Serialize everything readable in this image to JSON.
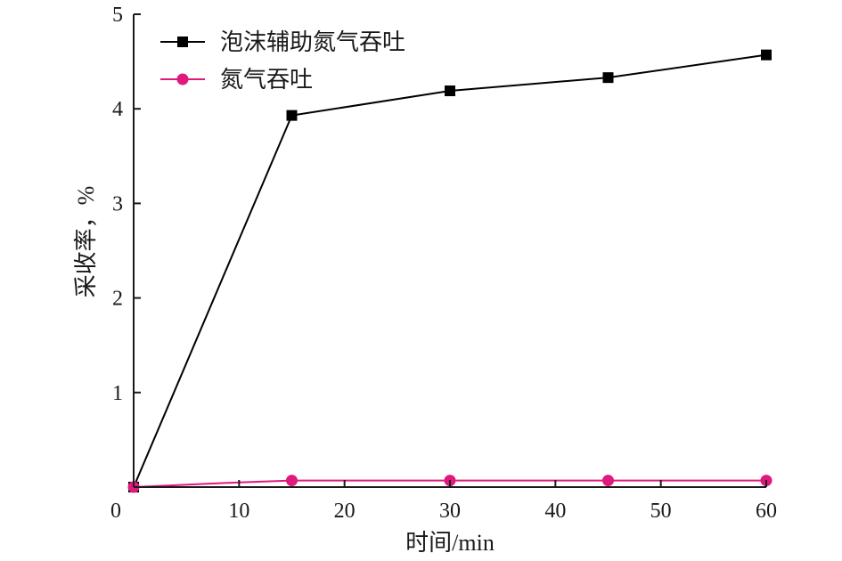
{
  "chart_data": {
    "type": "line",
    "xlabel": "时间/min",
    "ylabel": "采收率，%",
    "xlim": [
      0,
      60
    ],
    "ylim": [
      0,
      5
    ],
    "xticks": [
      0,
      10,
      20,
      30,
      40,
      50,
      60
    ],
    "yticks": [
      1,
      2,
      3,
      4,
      5
    ],
    "ytick_origin_label": "0",
    "grid": false,
    "legend_position": "top-left",
    "series": [
      {
        "name": "泡沫辅助氮气吞吐",
        "color": "#000000",
        "marker": "square",
        "x": [
          0,
          15,
          30,
          45,
          60
        ],
        "y": [
          0,
          3.93,
          4.19,
          4.33,
          4.57
        ]
      },
      {
        "name": "氮气吞吐",
        "color": "#e0197d",
        "marker": "circle",
        "x": [
          0,
          10,
          15,
          30,
          45,
          60
        ],
        "y": [
          0,
          0.05,
          0.07,
          0.07,
          0.07,
          0.07
        ],
        "marker_mask": [
          true,
          false,
          true,
          true,
          true,
          true
        ]
      }
    ]
  }
}
